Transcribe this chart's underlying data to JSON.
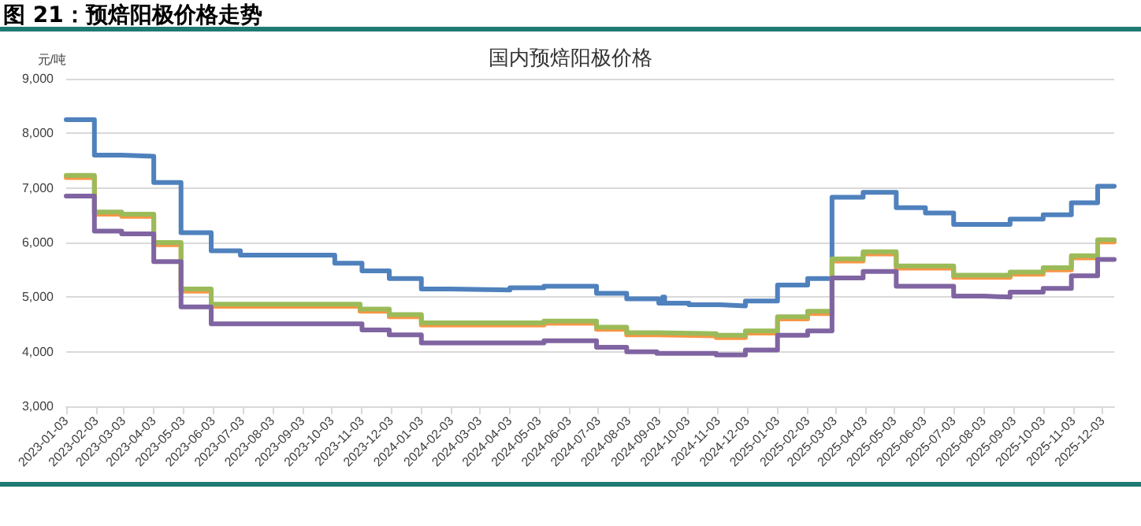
{
  "chart_data": {
    "type": "step",
    "title": "图 21：预焙阳极价格走势",
    "subtitle": "国内预焙阳极价格",
    "ylabel": "元/吨",
    "xlim": [
      "2023-01-03",
      "2025-12-15"
    ],
    "xticks": [
      "2023-01-03",
      "2023-02-03",
      "2023-03-03",
      "2023-04-03",
      "2023-05-03",
      "2023-06-03",
      "2023-07-03",
      "2023-08-03",
      "2023-09-03",
      "2023-10-03",
      "2023-11-03",
      "2023-12-03",
      "2024-01-03",
      "2024-02-03",
      "2024-03-03",
      "2024-04-03",
      "2024-05-03",
      "2024-06-03",
      "2024-07-03",
      "2024-08-03",
      "2024-09-03",
      "2024-10-03",
      "2024-11-03",
      "2024-12-03",
      "2025-01-03",
      "2025-02-03",
      "2025-03-03",
      "2025-04-03",
      "2025-05-03",
      "2025-06-03",
      "2025-07-03",
      "2025-08-03",
      "2025-09-03",
      "2025-10-03",
      "2025-11-03",
      "2025-12-03"
    ],
    "ylim": [
      3000,
      9000
    ],
    "yticks": [
      {
        "value": 3000,
        "label": "3,000"
      },
      {
        "value": 4000,
        "label": "4,000"
      },
      {
        "value": 5000,
        "label": "5,000"
      },
      {
        "value": 6000,
        "label": "6,000"
      },
      {
        "value": 7000,
        "label": "7,000"
      },
      {
        "value": 8000,
        "label": "8,000"
      },
      {
        "value": 9000,
        "label": "9,000"
      }
    ],
    "grid": "y",
    "marker": "none",
    "line_style": "solid",
    "series": [
      {
        "color": "#4f81bd",
        "x": [
          "2023-01-03",
          "2023-02-01",
          "2023-03-01",
          "2023-04-03",
          "2023-05-01",
          "2023-06-01",
          "2023-07-01",
          "2023-10-06",
          "2023-11-03",
          "2023-12-01",
          "2024-01-03",
          "2024-02-01",
          "2024-04-03",
          "2024-05-08",
          "2024-07-01",
          "2024-08-01",
          "2024-09-03",
          "2024-09-07",
          "2024-09-09",
          "2024-10-04",
          "2024-11-05",
          "2024-12-01",
          "2025-01-03",
          "2025-02-03",
          "2025-02-28",
          "2025-04-01",
          "2025-05-05",
          "2025-06-04",
          "2025-07-03",
          "2025-08-30",
          "2025-10-03",
          "2025-11-01",
          "2025-11-28",
          "2025-12-15"
        ],
        "values": [
          8250,
          7600,
          7580,
          7100,
          6180,
          5850,
          5770,
          5620,
          5480,
          5340,
          5150,
          5130,
          5170,
          5200,
          5070,
          4970,
          4890,
          5000,
          4890,
          4860,
          4840,
          4930,
          5220,
          5340,
          6830,
          6920,
          6640,
          6540,
          6330,
          6430,
          6510,
          6730,
          7030,
          7030
        ]
      },
      {
        "color": "#f79646",
        "x": [
          "2023-01-03",
          "2023-02-01",
          "2023-03-01",
          "2023-04-03",
          "2023-05-01",
          "2023-06-01",
          "2023-11-01",
          "2023-12-01",
          "2024-01-03",
          "2024-05-08",
          "2024-07-01",
          "2024-08-01",
          "2024-09-01",
          "2024-11-01",
          "2024-12-01",
          "2025-01-03",
          "2025-02-03",
          "2025-02-28",
          "2025-04-01",
          "2025-05-05",
          "2025-07-03",
          "2025-08-30",
          "2025-10-03",
          "2025-11-01",
          "2025-11-28",
          "2025-12-15"
        ],
        "values": [
          7190,
          6520,
          6480,
          5960,
          5110,
          4830,
          4740,
          4640,
          4490,
          4520,
          4410,
          4310,
          4290,
          4260,
          4340,
          4600,
          4700,
          5660,
          5790,
          5530,
          5360,
          5420,
          5500,
          5720,
          6010,
          6010
        ]
      },
      {
        "color": "#9bbb59",
        "x": [
          "2023-01-03",
          "2023-02-01",
          "2023-03-01",
          "2023-04-03",
          "2023-05-01",
          "2023-06-01",
          "2023-11-01",
          "2023-12-01",
          "2024-01-03",
          "2024-05-08",
          "2024-07-01",
          "2024-08-01",
          "2024-09-01",
          "2024-11-01",
          "2024-12-01",
          "2025-01-03",
          "2025-02-03",
          "2025-02-28",
          "2025-04-01",
          "2025-05-05",
          "2025-07-03",
          "2025-08-30",
          "2025-10-03",
          "2025-11-01",
          "2025-11-28",
          "2025-12-15"
        ],
        "values": [
          7230,
          6560,
          6520,
          6000,
          5150,
          4870,
          4780,
          4680,
          4530,
          4560,
          4450,
          4350,
          4330,
          4300,
          4380,
          4640,
          4740,
          5700,
          5830,
          5570,
          5400,
          5460,
          5540,
          5760,
          6050,
          6050
        ]
      },
      {
        "color": "#8064a2",
        "x": [
          "2023-01-03",
          "2023-02-01",
          "2023-03-01",
          "2023-04-03",
          "2023-05-01",
          "2023-06-01",
          "2023-11-03",
          "2023-12-01",
          "2024-01-03",
          "2024-05-08",
          "2024-07-01",
          "2024-08-01",
          "2024-09-01",
          "2024-11-01",
          "2024-12-01",
          "2025-01-03",
          "2025-02-03",
          "2025-02-28",
          "2025-04-01",
          "2025-05-05",
          "2025-07-03",
          "2025-08-03",
          "2025-08-30",
          "2025-10-03",
          "2025-11-01",
          "2025-11-28",
          "2025-12-15"
        ],
        "values": [
          6850,
          6210,
          6160,
          5650,
          4820,
          4510,
          4400,
          4310,
          4160,
          4200,
          4080,
          4000,
          3970,
          3940,
          4030,
          4300,
          4380,
          5350,
          5470,
          5200,
          5020,
          5000,
          5090,
          5160,
          5390,
          5690,
          5690
        ]
      }
    ]
  }
}
